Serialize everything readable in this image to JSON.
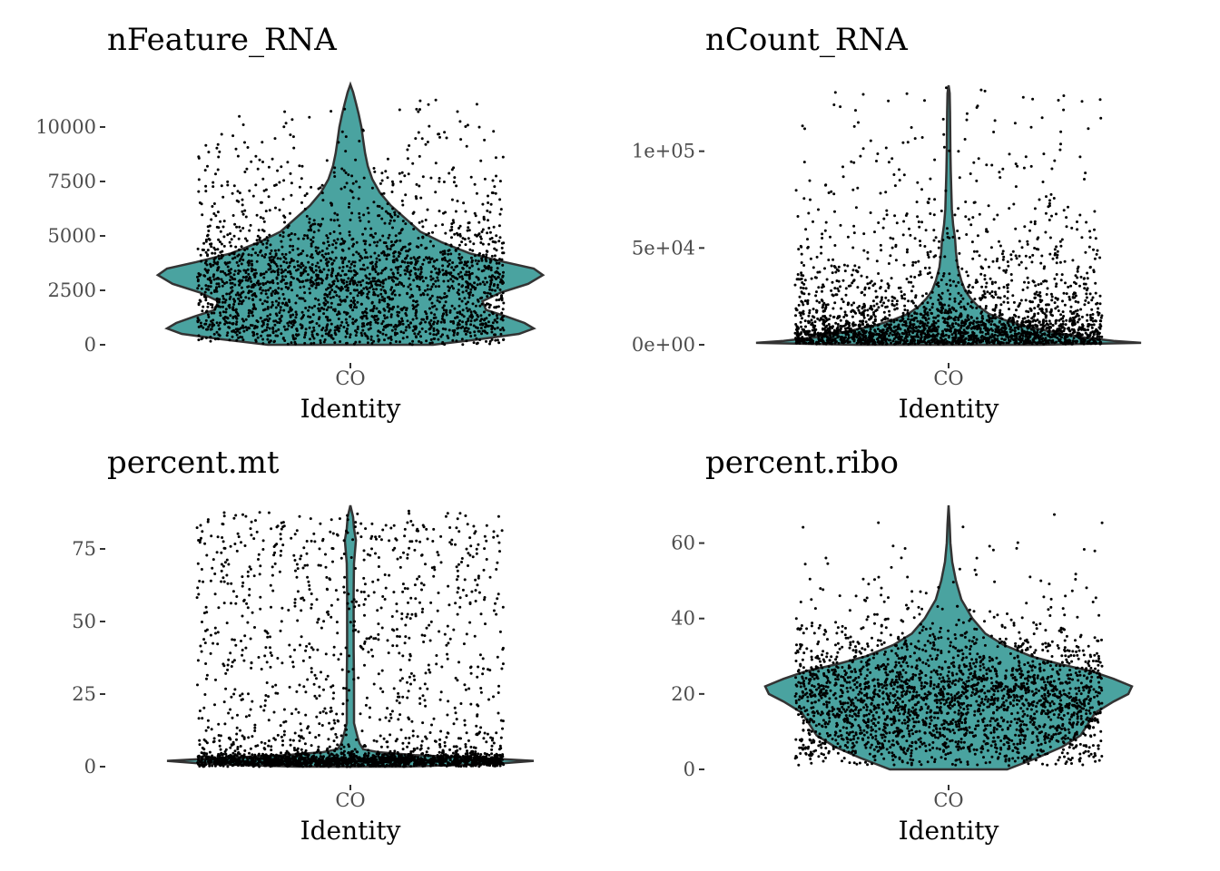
{
  "figure": {
    "xlabel": "Identity",
    "category": "CO"
  },
  "colors": {
    "violin_fill": "#4aa3a0",
    "violin_stroke": "#333333",
    "points": "#000000"
  },
  "chart_data": [
    {
      "type": "violin",
      "title": "nFeature_RNA",
      "xlabel": "Identity",
      "categories": [
        "CO"
      ],
      "ylim": [
        0,
        12000
      ],
      "yticks": [
        0,
        2500,
        5000,
        7500,
        10000
      ],
      "ytick_labels": [
        "0",
        "2500",
        "5000",
        "7500",
        "10000"
      ],
      "density": [
        [
          0,
          0.45
        ],
        [
          250,
          0.7
        ],
        [
          500,
          0.92
        ],
        [
          750,
          1.0
        ],
        [
          1000,
          0.95
        ],
        [
          1300,
          0.85
        ],
        [
          1600,
          0.74
        ],
        [
          2000,
          0.72
        ],
        [
          2400,
          0.82
        ],
        [
          2800,
          0.97
        ],
        [
          3200,
          1.05
        ],
        [
          3500,
          1.0
        ],
        [
          3800,
          0.84
        ],
        [
          4200,
          0.65
        ],
        [
          4700,
          0.5
        ],
        [
          5200,
          0.38
        ],
        [
          5800,
          0.3
        ],
        [
          6400,
          0.22
        ],
        [
          7000,
          0.16
        ],
        [
          7600,
          0.12
        ],
        [
          8200,
          0.095
        ],
        [
          8800,
          0.08
        ],
        [
          9400,
          0.07
        ],
        [
          10000,
          0.06
        ],
        [
          10600,
          0.045
        ],
        [
          11100,
          0.03
        ],
        [
          11600,
          0.015
        ],
        [
          11950,
          0.0
        ]
      ],
      "points": {
        "count": 2500,
        "min": 0,
        "max": 11950,
        "spread": 0.93
      }
    },
    {
      "type": "violin",
      "title": "nCount_RNA",
      "xlabel": "Identity",
      "categories": [
        "CO"
      ],
      "ylim": [
        0,
        135000
      ],
      "yticks": [
        0,
        50000,
        100000
      ],
      "ytick_labels": [
        "0e+00",
        "5e+04",
        "1e+05"
      ],
      "density": [
        [
          0,
          0.5
        ],
        [
          1000,
          1.05
        ],
        [
          2000,
          0.9
        ],
        [
          4000,
          0.72
        ],
        [
          7000,
          0.55
        ],
        [
          10000,
          0.4
        ],
        [
          13000,
          0.3
        ],
        [
          16000,
          0.22
        ],
        [
          20000,
          0.16
        ],
        [
          24000,
          0.12
        ],
        [
          28000,
          0.09
        ],
        [
          33000,
          0.07
        ],
        [
          40000,
          0.05
        ],
        [
          48000,
          0.04
        ],
        [
          55000,
          0.035
        ],
        [
          62000,
          0.025
        ],
        [
          70000,
          0.018
        ],
        [
          80000,
          0.015
        ],
        [
          90000,
          0.012
        ],
        [
          100000,
          0.01
        ],
        [
          110000,
          0.009
        ],
        [
          120000,
          0.008
        ],
        [
          130000,
          0.006
        ],
        [
          134000,
          0.0
        ]
      ],
      "points": {
        "count": 2600,
        "min": 300,
        "max": 134000,
        "spread": 0.93
      }
    },
    {
      "type": "violin",
      "title": "percent.mt",
      "xlabel": "Identity",
      "categories": [
        "CO"
      ],
      "ylim": [
        0,
        90
      ],
      "yticks": [
        0,
        25,
        50,
        75
      ],
      "ytick_labels": [
        "0",
        "25",
        "50",
        "75"
      ],
      "density": [
        [
          0,
          0.3
        ],
        [
          1,
          0.8
        ],
        [
          2,
          1.0
        ],
        [
          3,
          0.7
        ],
        [
          4,
          0.35
        ],
        [
          5,
          0.15
        ],
        [
          6,
          0.07
        ],
        [
          8,
          0.05
        ],
        [
          10,
          0.04
        ],
        [
          15,
          0.02
        ],
        [
          20,
          0.02
        ],
        [
          30,
          0.02
        ],
        [
          40,
          0.018
        ],
        [
          50,
          0.018
        ],
        [
          60,
          0.018
        ],
        [
          70,
          0.02
        ],
        [
          78,
          0.03
        ],
        [
          82,
          0.02
        ],
        [
          86,
          0.015
        ],
        [
          90,
          0.0
        ]
      ],
      "points": {
        "count": 2600,
        "min": 0,
        "max": 90,
        "spread": 0.93
      }
    },
    {
      "type": "violin",
      "title": "percent.ribo",
      "xlabel": "Identity",
      "categories": [
        "CO"
      ],
      "ylim": [
        0,
        70
      ],
      "yticks": [
        0,
        20,
        40,
        60
      ],
      "ytick_labels": [
        "0",
        "20",
        "40",
        "60"
      ],
      "density": [
        [
          0,
          0.32
        ],
        [
          3,
          0.48
        ],
        [
          6,
          0.62
        ],
        [
          9,
          0.72
        ],
        [
          12,
          0.76
        ],
        [
          15,
          0.8
        ],
        [
          18,
          0.9
        ],
        [
          20,
          0.98
        ],
        [
          22,
          1.0
        ],
        [
          24,
          0.9
        ],
        [
          26,
          0.78
        ],
        [
          28,
          0.6
        ],
        [
          30,
          0.45
        ],
        [
          33,
          0.3
        ],
        [
          36,
          0.2
        ],
        [
          40,
          0.13
        ],
        [
          45,
          0.07
        ],
        [
          50,
          0.04
        ],
        [
          55,
          0.02
        ],
        [
          60,
          0.01
        ],
        [
          65,
          0.006
        ],
        [
          70,
          0.0
        ]
      ],
      "points": {
        "count": 2600,
        "min": 1,
        "max": 70,
        "spread": 0.93
      }
    }
  ]
}
